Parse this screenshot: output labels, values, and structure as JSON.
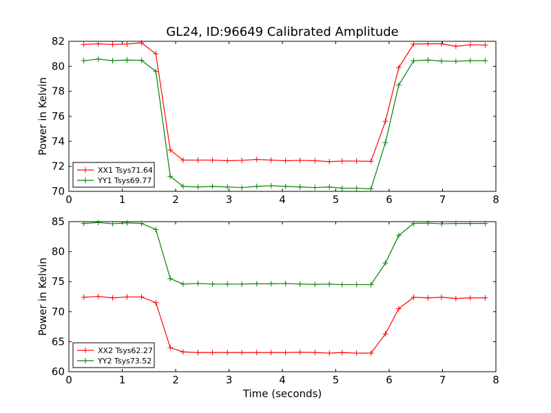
{
  "chart_data": [
    {
      "type": "line",
      "title": "GL24, ID:96649 Calibrated Amplitude",
      "xlabel": "",
      "ylabel": "Power in Kelvin",
      "xlim": [
        0,
        8
      ],
      "ylim": [
        70,
        82
      ],
      "xticks": [
        "0",
        "1",
        "2",
        "3",
        "4",
        "5",
        "6",
        "7",
        "8"
      ],
      "yticks": [
        "70",
        "72",
        "74",
        "76",
        "78",
        "80",
        "82"
      ],
      "grid": false,
      "legend": "lower-left",
      "x": [
        0.28,
        0.55,
        0.82,
        1.09,
        1.36,
        1.63,
        1.9,
        2.14,
        2.42,
        2.69,
        2.97,
        3.24,
        3.52,
        3.79,
        4.06,
        4.33,
        4.61,
        4.88,
        5.12,
        5.39,
        5.66,
        5.93,
        6.18,
        6.46,
        6.73,
        6.98,
        7.25,
        7.52,
        7.8
      ],
      "series": [
        {
          "name": "XX1 Tsys71.64",
          "color": "#ff0000",
          "values": [
            81.75,
            81.8,
            81.75,
            81.78,
            81.88,
            81.0,
            73.3,
            72.5,
            72.5,
            72.5,
            72.45,
            72.48,
            72.55,
            72.5,
            72.45,
            72.48,
            72.45,
            72.38,
            72.42,
            72.42,
            72.4,
            75.6,
            79.9,
            81.78,
            81.8,
            81.8,
            81.6,
            81.72,
            81.7
          ]
        },
        {
          "name": "YY1 Tsys69.77",
          "color": "#008000",
          "values": [
            80.45,
            80.58,
            80.45,
            80.5,
            80.48,
            79.6,
            71.2,
            70.4,
            70.35,
            70.4,
            70.35,
            70.3,
            70.4,
            70.45,
            70.4,
            70.35,
            70.3,
            70.35,
            70.25,
            70.25,
            70.2,
            73.9,
            78.5,
            80.45,
            80.5,
            80.42,
            80.4,
            80.45,
            80.45
          ]
        }
      ]
    },
    {
      "type": "line",
      "title": "",
      "xlabel": "Time (seconds)",
      "ylabel": "Power in Kelvin",
      "xlim": [
        0,
        8
      ],
      "ylim": [
        60,
        85
      ],
      "xticks": [
        "0",
        "1",
        "2",
        "3",
        "4",
        "5",
        "6",
        "7",
        "8"
      ],
      "yticks": [
        "60",
        "65",
        "70",
        "75",
        "80",
        "85"
      ],
      "grid": false,
      "legend": "lower-left",
      "x": [
        0.28,
        0.55,
        0.82,
        1.09,
        1.36,
        1.63,
        1.9,
        2.14,
        2.42,
        2.69,
        2.97,
        3.24,
        3.52,
        3.79,
        4.06,
        4.33,
        4.61,
        4.88,
        5.12,
        5.39,
        5.66,
        5.93,
        6.18,
        6.46,
        6.73,
        6.98,
        7.25,
        7.52,
        7.8
      ],
      "series": [
        {
          "name": "XX2 Tsys62.27",
          "color": "#ff0000",
          "values": [
            72.4,
            72.55,
            72.3,
            72.45,
            72.45,
            71.5,
            64.0,
            63.3,
            63.2,
            63.2,
            63.2,
            63.2,
            63.2,
            63.2,
            63.2,
            63.25,
            63.2,
            63.1,
            63.2,
            63.1,
            63.1,
            66.3,
            70.5,
            72.4,
            72.3,
            72.4,
            72.2,
            72.3,
            72.3
          ]
        },
        {
          "name": "YY2 Tsys73.52",
          "color": "#008000",
          "values": [
            84.7,
            84.85,
            84.65,
            84.8,
            84.7,
            83.7,
            75.5,
            74.6,
            74.7,
            74.6,
            74.6,
            74.6,
            74.65,
            74.65,
            74.7,
            74.6,
            74.55,
            74.6,
            74.5,
            74.5,
            74.5,
            78.1,
            82.7,
            84.7,
            84.75,
            84.65,
            84.7,
            84.7,
            84.7
          ]
        }
      ]
    }
  ]
}
